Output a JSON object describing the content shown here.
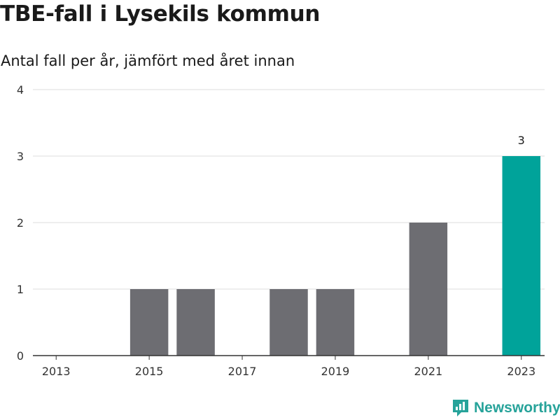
{
  "title": "TBE-fall i Lysekils kommun",
  "subtitle": "Antal fall per år, jämfört med året innan",
  "brand": {
    "name": "Newsworthy",
    "icon": "newsworthy-logo-icon",
    "color": "#27a39a"
  },
  "colors": {
    "bar": "#6d6d72",
    "highlight": "#00a39a",
    "grid": "#dddddd",
    "axis": "#333333"
  },
  "chart_data": {
    "type": "bar",
    "title": "TBE-fall i Lysekils kommun",
    "subtitle": "Antal fall per år, jämfört med året innan",
    "categories": [
      "2013",
      "2014",
      "2015",
      "2016",
      "2017",
      "2018",
      "2019",
      "2020",
      "2021",
      "2022",
      "2023"
    ],
    "x_tick_labels": [
      "2013",
      "2015",
      "2017",
      "2019",
      "2021",
      "2023"
    ],
    "values": [
      0,
      0,
      1,
      1,
      0,
      1,
      1,
      0,
      2,
      0,
      3
    ],
    "highlight_category": "2023",
    "data_labels": [
      {
        "category": "2023",
        "text": "3"
      }
    ],
    "ylim": [
      0,
      4
    ],
    "y_ticks": [
      0,
      1,
      2,
      3,
      4
    ],
    "xlabel": "",
    "ylabel": "",
    "grid": true,
    "legend": "none"
  }
}
